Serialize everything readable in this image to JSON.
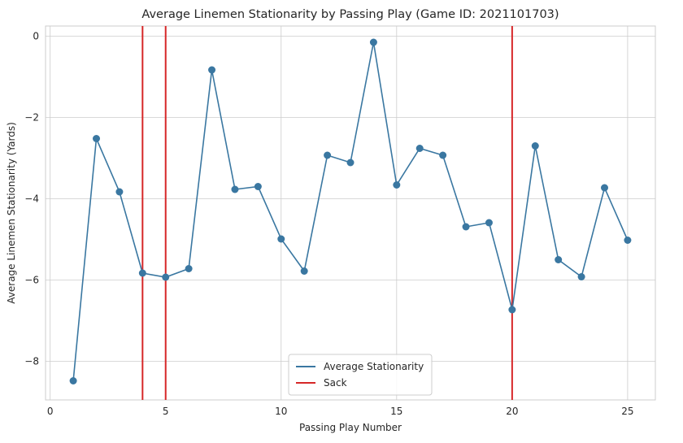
{
  "chart_data": {
    "type": "line",
    "title": "Average Linemen Stationarity by Passing Play (Game ID: 2021101703)",
    "xlabel": "Passing Play Number",
    "ylabel": "Average Linemen Stationarity (Yards)",
    "xlim": [
      -0.2,
      26.2
    ],
    "ylim": [
      -8.95,
      0.25
    ],
    "xticks": [
      0,
      5,
      10,
      15,
      20,
      25
    ],
    "yticks": [
      0,
      -2,
      -4,
      -6,
      -8
    ],
    "xtick_labels": [
      "0",
      "5",
      "10",
      "15",
      "20",
      "25"
    ],
    "ytick_labels": [
      "0",
      "−2",
      "−4",
      "−6",
      "−8"
    ],
    "grid": true,
    "legend_position": "bottom-center",
    "series": [
      {
        "name": "Average Stationarity",
        "color": "#3a77a1",
        "marker": "circle",
        "x": [
          1,
          2,
          3,
          4,
          5,
          6,
          7,
          8,
          9,
          10,
          11,
          12,
          13,
          14,
          15,
          16,
          17,
          18,
          19,
          20,
          21,
          22,
          23,
          24,
          25
        ],
        "values": [
          -8.48,
          -2.52,
          -3.83,
          -5.83,
          -5.93,
          -5.72,
          -0.83,
          -3.77,
          -3.7,
          -4.99,
          -5.78,
          -2.93,
          -3.11,
          -0.15,
          -3.66,
          -2.76,
          -2.93,
          -4.69,
          -4.59,
          -6.73,
          -2.7,
          -5.5,
          -5.92,
          -3.73,
          -5.02
        ]
      }
    ],
    "vlines": {
      "name": "Sack",
      "color": "#d62728",
      "x": [
        4,
        5,
        20
      ]
    }
  }
}
